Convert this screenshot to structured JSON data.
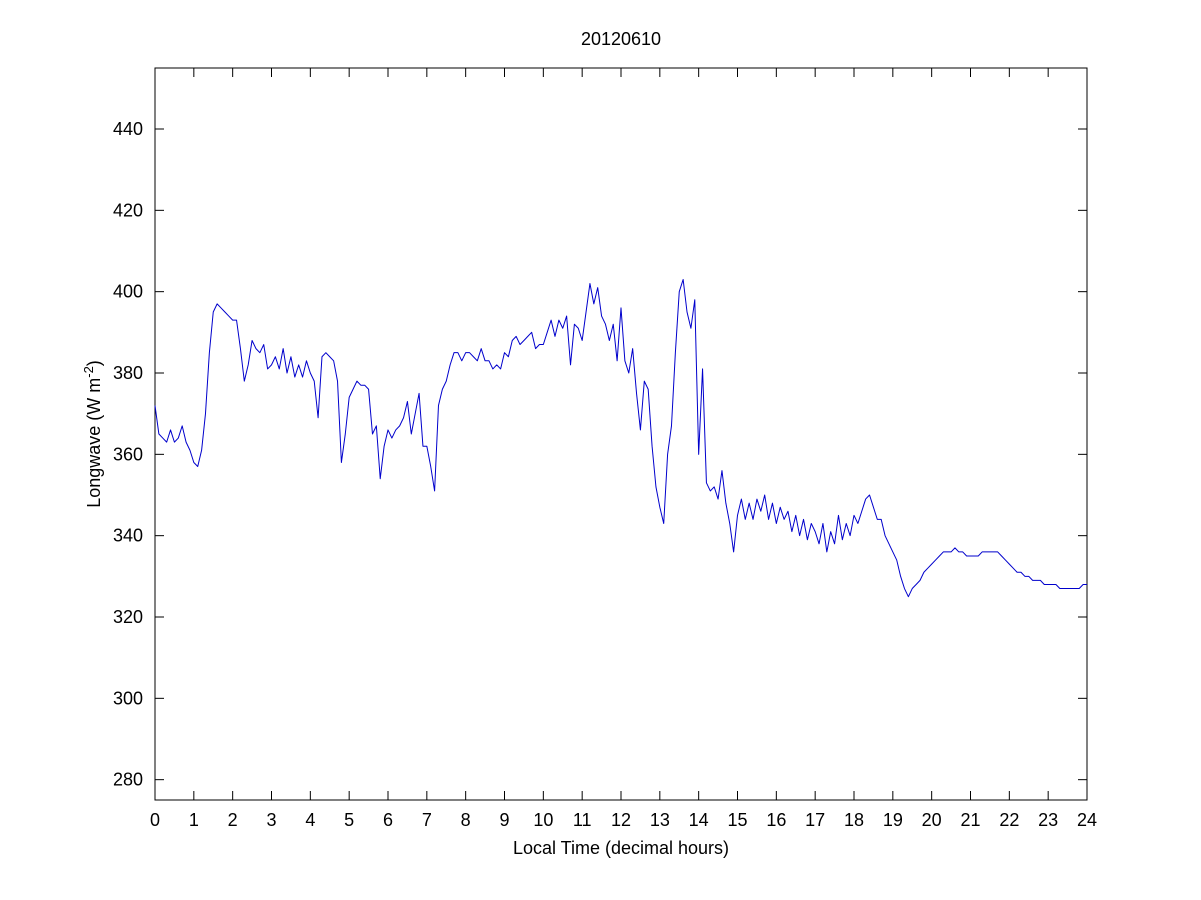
{
  "chart_data": {
    "type": "line",
    "title": "20120610",
    "x_label": "Local Time (decimal hours)",
    "y_label": {
      "text": "Longwave (W m",
      "superscript": "-2",
      "suffix": ")"
    },
    "xlim": [
      0,
      24
    ],
    "xticks": [
      0,
      1,
      2,
      3,
      4,
      5,
      6,
      7,
      8,
      9,
      10,
      11,
      12,
      13,
      14,
      15,
      16,
      17,
      18,
      19,
      20,
      21,
      22,
      23,
      24
    ],
    "ylim": [
      275,
      455
    ],
    "yticks": [
      280,
      300,
      320,
      340,
      360,
      380,
      400,
      420,
      440
    ],
    "grid": false,
    "x": [
      0,
      0.1,
      0.2,
      0.3,
      0.4,
      0.5,
      0.6,
      0.7,
      0.8,
      0.9,
      1,
      1.1,
      1.2,
      1.3,
      1.4,
      1.5,
      1.6,
      1.7,
      1.8,
      1.9,
      2,
      2.1,
      2.2,
      2.3,
      2.4,
      2.5,
      2.6,
      2.7,
      2.8,
      2.9,
      3,
      3.1,
      3.2,
      3.3,
      3.4,
      3.5,
      3.6,
      3.7,
      3.8,
      3.9,
      4,
      4.1,
      4.2,
      4.3,
      4.4,
      4.5,
      4.6,
      4.7,
      4.8,
      4.9,
      5,
      5.1,
      5.2,
      5.3,
      5.4,
      5.5,
      5.6,
      5.7,
      5.8,
      5.9,
      6,
      6.1,
      6.2,
      6.3,
      6.4,
      6.5,
      6.6,
      6.7,
      6.8,
      6.9,
      7,
      7.1,
      7.2,
      7.3,
      7.4,
      7.5,
      7.6,
      7.7,
      7.8,
      7.9,
      8,
      8.1,
      8.2,
      8.3,
      8.4,
      8.5,
      8.6,
      8.7,
      8.8,
      8.9,
      9,
      9.1,
      9.2,
      9.3,
      9.4,
      9.5,
      9.6,
      9.7,
      9.8,
      9.9,
      10,
      10.1,
      10.2,
      10.3,
      10.4,
      10.5,
      10.6,
      10.7,
      10.8,
      10.9,
      11,
      11.1,
      11.2,
      11.3,
      11.4,
      11.5,
      11.6,
      11.7,
      11.8,
      11.9,
      12,
      12.1,
      12.2,
      12.3,
      12.4,
      12.5,
      12.6,
      12.7,
      12.8,
      12.9,
      13,
      13.1,
      13.2,
      13.3,
      13.4,
      13.5,
      13.6,
      13.7,
      13.8,
      13.9,
      14,
      14.1,
      14.2,
      14.3,
      14.4,
      14.5,
      14.6,
      14.7,
      14.8,
      14.9,
      15,
      15.1,
      15.2,
      15.3,
      15.4,
      15.5,
      15.6,
      15.7,
      15.8,
      15.9,
      16,
      16.1,
      16.2,
      16.3,
      16.4,
      16.5,
      16.6,
      16.7,
      16.8,
      16.9,
      17,
      17.1,
      17.2,
      17.3,
      17.4,
      17.5,
      17.6,
      17.7,
      17.8,
      17.9,
      18,
      18.1,
      18.2,
      18.3,
      18.4,
      18.5,
      18.6,
      18.7,
      18.8,
      18.9,
      19,
      19.1,
      19.2,
      19.3,
      19.4,
      19.5,
      19.6,
      19.7,
      19.8,
      19.9,
      20,
      20.1,
      20.2,
      20.3,
      20.4,
      20.5,
      20.6,
      20.7,
      20.8,
      20.9,
      21,
      21.1,
      21.2,
      21.3,
      21.4,
      21.5,
      21.6,
      21.7,
      21.8,
      21.9,
      22,
      22.1,
      22.2,
      22.3,
      22.4,
      22.5,
      22.6,
      22.7,
      22.8,
      22.9,
      23,
      23.1,
      23.2,
      23.3,
      23.4,
      23.5,
      23.6,
      23.7,
      23.8,
      23.9,
      24
    ],
    "series": [
      {
        "color": "#0000cc",
        "values": [
          372,
          365,
          364,
          363,
          366,
          363,
          364,
          367,
          363,
          361,
          358,
          357,
          361,
          370,
          385,
          395,
          397,
          396,
          395,
          394,
          393,
          393,
          386,
          378,
          382,
          388,
          386,
          385,
          387,
          381,
          382,
          384,
          381,
          386,
          380,
          384,
          379,
          382,
          379,
          383,
          380,
          378,
          369,
          384,
          385,
          384,
          383,
          378,
          358,
          365,
          374,
          376,
          378,
          377,
          377,
          376,
          365,
          367,
          354,
          362,
          366,
          364,
          366,
          367,
          369,
          373,
          365,
          370,
          375,
          362,
          362,
          357,
          351,
          372,
          376,
          378,
          382,
          385,
          385,
          383,
          385,
          385,
          384,
          383,
          386,
          383,
          383,
          381,
          382,
          381,
          385,
          384,
          388,
          389,
          387,
          388,
          389,
          390,
          386,
          387,
          387,
          390,
          393,
          389,
          393,
          391,
          394,
          382,
          392,
          391,
          388,
          395,
          402,
          397,
          401,
          394,
          392,
          388,
          392,
          383,
          396,
          383,
          380,
          386,
          375,
          366,
          378,
          376,
          362,
          352,
          347,
          343,
          360,
          367,
          385,
          400,
          403,
          395,
          391,
          398,
          360,
          381,
          353,
          351,
          352,
          349,
          356,
          348,
          343,
          336,
          345,
          349,
          344,
          348,
          344,
          349,
          346,
          350,
          344,
          348,
          343,
          347,
          344,
          346,
          341,
          345,
          340,
          344,
          339,
          343,
          341,
          338,
          343,
          336,
          341,
          338,
          345,
          339,
          343,
          340,
          345,
          343,
          346,
          349,
          350,
          347,
          344,
          344,
          340,
          338,
          336,
          334,
          330,
          327,
          325,
          327,
          328,
          329,
          331,
          332,
          333,
          334,
          335,
          336,
          336,
          336,
          337,
          336,
          336,
          335,
          335,
          335,
          335,
          336,
          336,
          336,
          336,
          336,
          335,
          334,
          333,
          332,
          331,
          331,
          330,
          330,
          329,
          329,
          329,
          328,
          328,
          328,
          328,
          327,
          327,
          327,
          327,
          327,
          327,
          328,
          328
        ]
      }
    ]
  }
}
